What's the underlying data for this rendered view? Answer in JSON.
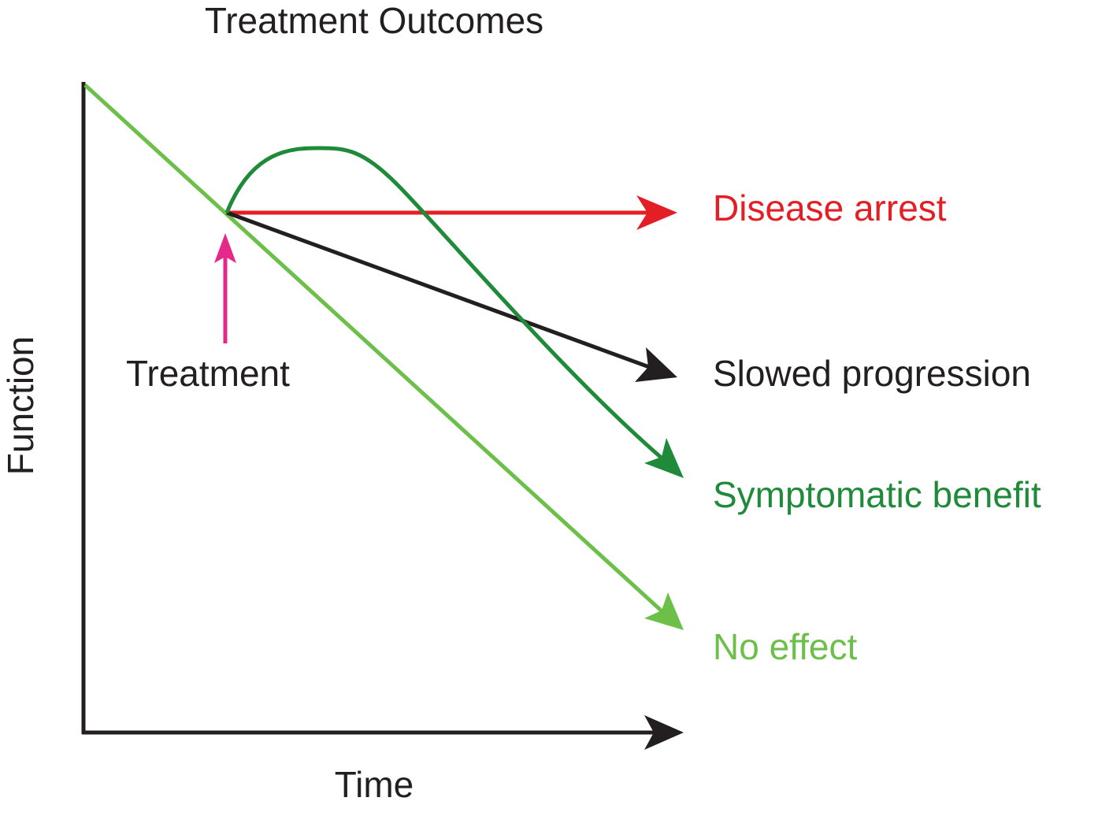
{
  "title": "Treatment Outcomes",
  "axes": {
    "x": "Time",
    "y": "Function"
  },
  "annotation": "Treatment",
  "outcomes": [
    "Disease arrest",
    "Slowed progression",
    "Symptomatic benefit",
    "No effect"
  ]
}
